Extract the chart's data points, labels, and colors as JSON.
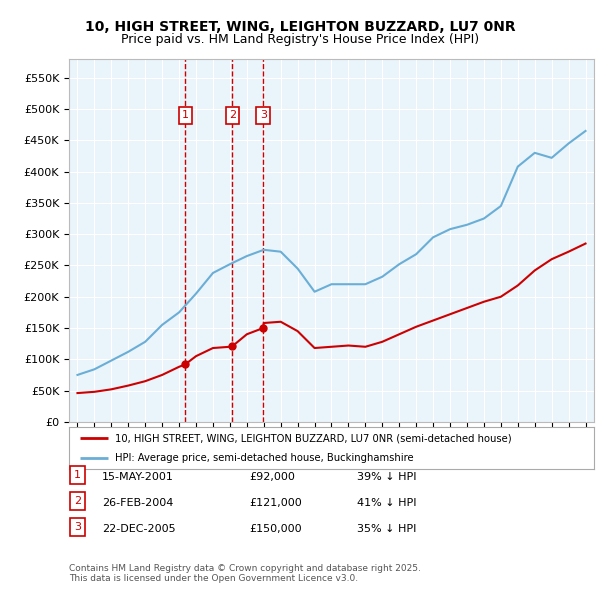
{
  "title": "10, HIGH STREET, WING, LEIGHTON BUZZARD, LU7 0NR",
  "subtitle": "Price paid vs. HM Land Registry's House Price Index (HPI)",
  "legend_line1": "10, HIGH STREET, WING, LEIGHTON BUZZARD, LU7 0NR (semi-detached house)",
  "legend_line2": "HPI: Average price, semi-detached house, Buckinghamshire",
  "footnote": "Contains HM Land Registry data © Crown copyright and database right 2025.\nThis data is licensed under the Open Government Licence v3.0.",
  "transactions": [
    {
      "label": "1",
      "date": "15-MAY-2001",
      "price": 92000,
      "pct": "39% ↓ HPI",
      "x": 2001.37
    },
    {
      "label": "2",
      "date": "26-FEB-2004",
      "price": 121000,
      "pct": "41% ↓ HPI",
      "x": 2004.15
    },
    {
      "label": "3",
      "date": "22-DEC-2005",
      "price": 150000,
      "pct": "35% ↓ HPI",
      "x": 2005.97
    }
  ],
  "hpi_color": "#6aaed6",
  "price_color": "#cc0000",
  "plot_bg": "#eaf4fb",
  "ylim": [
    0,
    580000
  ],
  "yticks": [
    0,
    50000,
    100000,
    150000,
    200000,
    250000,
    300000,
    350000,
    400000,
    450000,
    500000,
    550000
  ],
  "xlim": [
    1994.5,
    2025.5
  ],
  "hpi_data_x": [
    1995,
    1996,
    1997,
    1998,
    1999,
    2000,
    2001,
    2002,
    2003,
    2004,
    2005,
    2006,
    2007,
    2008,
    2009,
    2010,
    2011,
    2012,
    2013,
    2014,
    2015,
    2016,
    2017,
    2018,
    2019,
    2020,
    2021,
    2022,
    2023,
    2024,
    2025
  ],
  "hpi_data_y": [
    75000,
    84000,
    98000,
    112000,
    128000,
    155000,
    175000,
    205000,
    238000,
    252000,
    265000,
    275000,
    272000,
    245000,
    208000,
    220000,
    220000,
    220000,
    232000,
    252000,
    268000,
    295000,
    308000,
    315000,
    325000,
    345000,
    408000,
    430000,
    422000,
    445000,
    465000
  ],
  "price_data_x": [
    1995,
    1996,
    1997,
    1998,
    1999,
    2000,
    2001,
    2001.37,
    2002,
    2003,
    2004,
    2004.15,
    2005,
    2005.97,
    2006,
    2007,
    2008,
    2009,
    2010,
    2011,
    2012,
    2013,
    2014,
    2015,
    2016,
    2017,
    2018,
    2019,
    2020,
    2021,
    2022,
    2023,
    2024,
    2025
  ],
  "price_data_y": [
    46000,
    48000,
    52000,
    58000,
    65000,
    75000,
    88000,
    92000,
    105000,
    118000,
    120000,
    121000,
    140000,
    150000,
    158000,
    160000,
    145000,
    118000,
    120000,
    122000,
    120000,
    128000,
    140000,
    152000,
    162000,
    172000,
    182000,
    192000,
    200000,
    218000,
    242000,
    260000,
    272000,
    285000
  ]
}
